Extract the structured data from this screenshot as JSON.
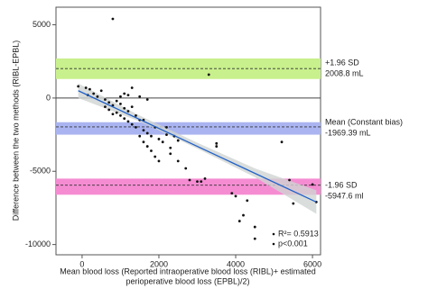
{
  "chart_data": {
    "type": "scatter",
    "x_label_lines": [
      "Mean blood loss (Reported intraoperative blood loss (RIBL)+ estimated",
      "perioperative blood loss (EPBL)/2)"
    ],
    "y_label": "Difference between the two methods  (RIBL-EPBL)",
    "xlim": [
      -680,
      6210
    ],
    "ylim": [
      -10700,
      6200
    ],
    "xticks": [
      0,
      2000,
      4000,
      6000
    ],
    "yticks": [
      -10000,
      -5000,
      0,
      5000
    ],
    "zero_line": 0,
    "bands": [
      {
        "color": "#c8f08c",
        "lower": 1300,
        "upper": 2700,
        "line": 2008.8,
        "label_lines": [
          "+1.96 SD",
          "2008.8 mL"
        ]
      },
      {
        "color": "#aab4f0",
        "lower": -2500,
        "upper": -1650,
        "line": -1969.39,
        "label_lines": [
          "Mean (Constant bias)",
          "-1969.39 mL"
        ]
      },
      {
        "color": "#f58cd2",
        "lower": -6600,
        "upper": -5500,
        "line": -5947.6,
        "label_lines": [
          "-1.96 SD",
          "-5947.6 ml"
        ]
      }
    ],
    "fit": {
      "color": "#2060c8",
      "x": [
        -100,
        6100
      ],
      "y": [
        500,
        -7100
      ]
    },
    "confidence_band": {
      "color": "#cfd4d2",
      "x": [
        -100,
        1500,
        3000,
        4500,
        6100
      ],
      "lower": [
        0,
        -1600,
        -3450,
        -5400,
        -7900
      ],
      "upper": [
        1000,
        -1200,
        -3050,
        -4800,
        -6300
      ]
    },
    "stats_lines": [
      "R²= 0.5913",
      "p<0.001"
    ],
    "series": [
      {
        "name": "points",
        "color": "#111",
        "x": [
          800,
          -100,
          100,
          200,
          300,
          400,
          150,
          500,
          600,
          700,
          800,
          900,
          1000,
          1100,
          1200,
          1300,
          700,
          900,
          1000,
          1100,
          1200,
          1300,
          1400,
          1500,
          1600,
          1700,
          1800,
          1900,
          2000,
          2100,
          2200,
          1500,
          1600,
          1700,
          1800,
          1900,
          2000,
          1400,
          1200,
          1500,
          1700,
          1300,
          1000,
          1100,
          2200,
          2400,
          2500,
          2300,
          3500,
          3500,
          3300,
          2800,
          3000,
          3100,
          2500,
          2300,
          2700,
          3900,
          3200,
          4000,
          4300,
          4100,
          4200,
          5200,
          5400,
          4500,
          4500,
          6000,
          6100,
          5500,
          600,
          800,
          1600
        ],
        "values": [
          5400,
          800,
          700,
          600,
          300,
          100,
          200,
          500,
          -100,
          -300,
          -500,
          -200,
          -400,
          -700,
          -900,
          -600,
          -800,
          -1000,
          -1200,
          -1400,
          -1600,
          -1800,
          -2000,
          -1500,
          -2200,
          -2400,
          -2600,
          -2000,
          -2800,
          -3000,
          -2500,
          -2600,
          -3000,
          -3300,
          -3600,
          -4000,
          -4300,
          -1200,
          200,
          100,
          -100,
          700,
          100,
          300,
          -2000,
          -2600,
          -2900,
          -3400,
          -3100,
          -3300,
          1600,
          -5600,
          -5700,
          -5700,
          -4300,
          -3800,
          -4800,
          -6500,
          -5500,
          -6700,
          -7000,
          -8400,
          -8000,
          -3000,
          -5600,
          -8800,
          -9600,
          -5900,
          -7100,
          -7200,
          -600,
          -1100,
          -1500
        ]
      }
    ]
  }
}
